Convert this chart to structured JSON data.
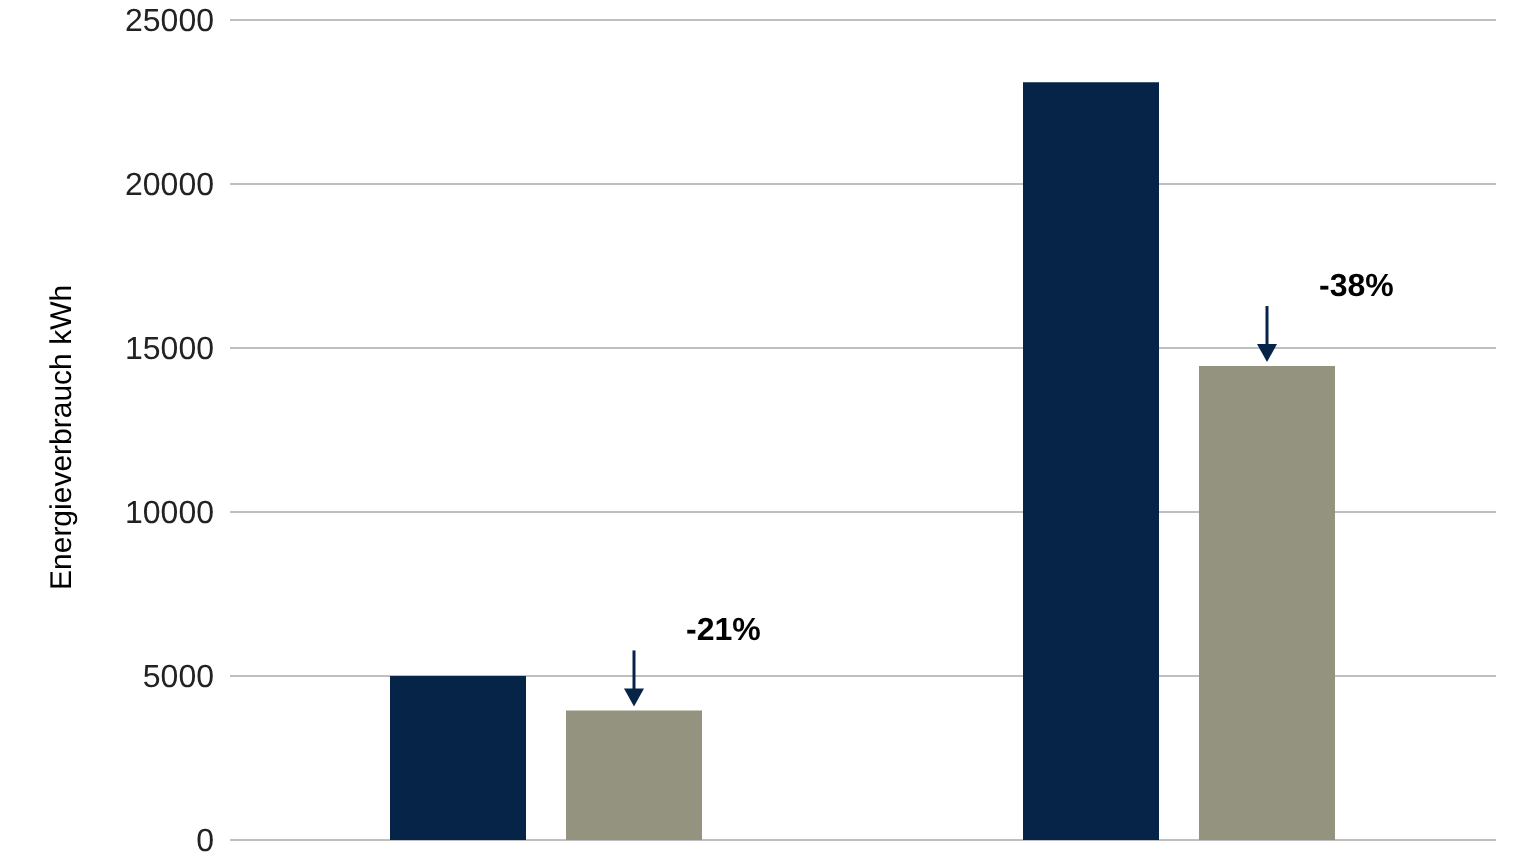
{
  "chart_data": {
    "type": "bar",
    "ylabel": "Energieverbrauch kWh",
    "categories": [
      null,
      null
    ],
    "series": [
      {
        "color": "#062448",
        "values": [
          5000,
          23100
        ]
      },
      {
        "color": "#939380",
        "values": [
          3950,
          14450
        ]
      }
    ],
    "ylim": [
      0,
      25000
    ],
    "yticks": [
      0,
      5000,
      10000,
      15000,
      20000,
      25000
    ],
    "grid": "y",
    "annotations": [
      "-21%",
      "-38%"
    ]
  }
}
